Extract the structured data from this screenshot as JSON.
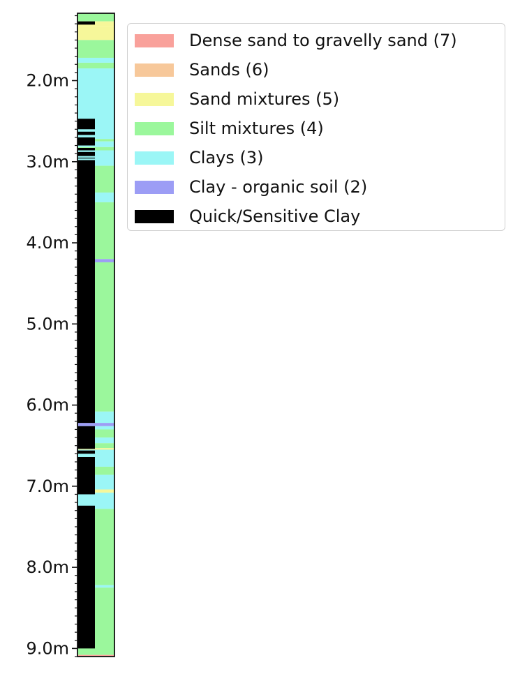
{
  "chart_data": {
    "type": "bar",
    "orientation": "vertical-strip",
    "y_unit": "m",
    "ylim": [
      1.17,
      9.1
    ],
    "y_inverted": true,
    "yticks": [
      {
        "value": 2.0,
        "label": "2.0m"
      },
      {
        "value": 3.0,
        "label": "3.0m"
      },
      {
        "value": 4.0,
        "label": "4.0m"
      },
      {
        "value": 5.0,
        "label": "5.0m"
      },
      {
        "value": 6.0,
        "label": "6.0m"
      },
      {
        "value": 7.0,
        "label": "7.0m"
      },
      {
        "value": 8.0,
        "label": "8.0m"
      },
      {
        "value": 9.0,
        "label": "9.0m"
      }
    ],
    "legend": {
      "position": "upper-right-outside",
      "entries": [
        {
          "key": "7",
          "label": "Dense sand to gravelly sand (7)",
          "color": "#f9a19b"
        },
        {
          "key": "6",
          "label": "Sands (6)",
          "color": "#f7c89a"
        },
        {
          "key": "5",
          "label": "Sand mixtures (5)",
          "color": "#f6f79a"
        },
        {
          "key": "4",
          "label": "Silt mixtures (4)",
          "color": "#9bf79c"
        },
        {
          "key": "3",
          "label": "Clays (3)",
          "color": "#9bf6f6"
        },
        {
          "key": "2",
          "label": "Clay - organic soil (2)",
          "color": "#9c9df5"
        },
        {
          "key": "q",
          "label": "Quick/Sensitive Clay",
          "color": "#000000"
        }
      ]
    },
    "soil_layers": [
      {
        "from": 1.17,
        "to": 1.27,
        "class": "4"
      },
      {
        "from": 1.27,
        "to": 1.33,
        "class": "5"
      },
      {
        "from": 1.33,
        "to": 1.5,
        "class": "5"
      },
      {
        "from": 1.5,
        "to": 1.72,
        "class": "4"
      },
      {
        "from": 1.72,
        "to": 1.78,
        "class": "3"
      },
      {
        "from": 1.78,
        "to": 1.85,
        "class": "4"
      },
      {
        "from": 1.85,
        "to": 2.72,
        "class": "3"
      },
      {
        "from": 2.72,
        "to": 2.75,
        "class": "4"
      },
      {
        "from": 2.75,
        "to": 2.82,
        "class": "3"
      },
      {
        "from": 2.82,
        "to": 2.86,
        "class": "4"
      },
      {
        "from": 2.86,
        "to": 3.05,
        "class": "3"
      },
      {
        "from": 3.05,
        "to": 3.38,
        "class": "4"
      },
      {
        "from": 3.38,
        "to": 3.5,
        "class": "3"
      },
      {
        "from": 3.5,
        "to": 4.2,
        "class": "4"
      },
      {
        "from": 4.2,
        "to": 4.24,
        "class": "2"
      },
      {
        "from": 4.24,
        "to": 6.08,
        "class": "4"
      },
      {
        "from": 6.08,
        "to": 6.22,
        "class": "3"
      },
      {
        "from": 6.22,
        "to": 6.26,
        "class": "2"
      },
      {
        "from": 6.26,
        "to": 6.3,
        "class": "3"
      },
      {
        "from": 6.3,
        "to": 6.4,
        "class": "4"
      },
      {
        "from": 6.4,
        "to": 6.47,
        "class": "3"
      },
      {
        "from": 6.47,
        "to": 6.53,
        "class": "4"
      },
      {
        "from": 6.53,
        "to": 6.55,
        "class": "5"
      },
      {
        "from": 6.55,
        "to": 6.76,
        "class": "3"
      },
      {
        "from": 6.76,
        "to": 6.86,
        "class": "4"
      },
      {
        "from": 6.86,
        "to": 7.04,
        "class": "3"
      },
      {
        "from": 7.04,
        "to": 7.08,
        "class": "5"
      },
      {
        "from": 7.08,
        "to": 7.28,
        "class": "3"
      },
      {
        "from": 7.28,
        "to": 8.22,
        "class": "4"
      },
      {
        "from": 8.22,
        "to": 8.25,
        "class": "3"
      },
      {
        "from": 8.25,
        "to": 9.08,
        "class": "4"
      },
      {
        "from": 9.08,
        "to": 9.1,
        "class": "7"
      }
    ],
    "quick_clay_intervals": [
      [
        1.27,
        1.31
      ],
      [
        2.47,
        2.6
      ],
      [
        2.63,
        2.67
      ],
      [
        2.7,
        2.8
      ],
      [
        2.83,
        2.86
      ],
      [
        2.88,
        2.93
      ],
      [
        2.95,
        2.96
      ],
      [
        2.98,
        6.22
      ],
      [
        6.26,
        6.54
      ],
      [
        6.56,
        6.6
      ],
      [
        6.64,
        7.1
      ],
      [
        7.24,
        9.0
      ]
    ],
    "quick_clay_color": "#000000",
    "grid": false
  }
}
